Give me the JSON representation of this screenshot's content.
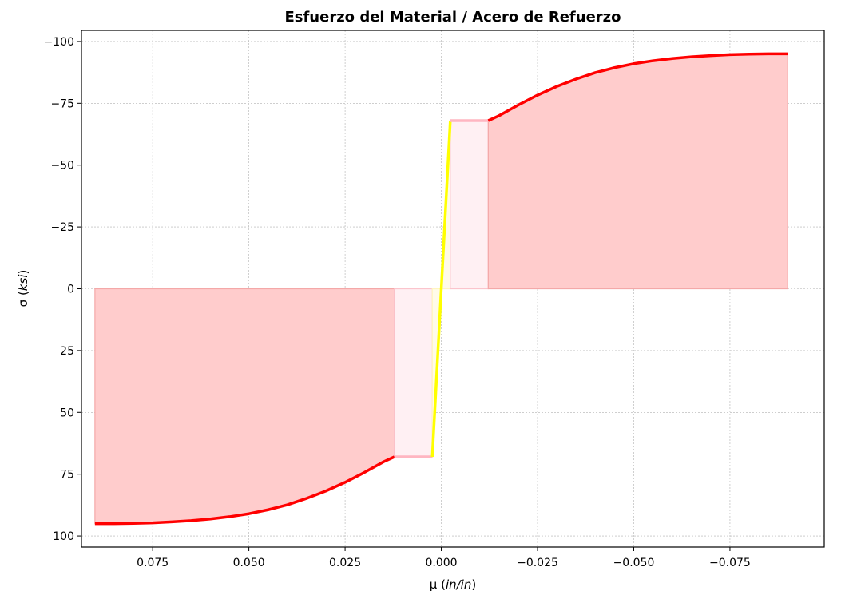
{
  "chart_data": {
    "type": "line",
    "title": "Esfuerzo del Material / Acero de Refuerzo",
    "xlabel": "μ (in/in)",
    "ylabel": "σ (ksi)",
    "x_inverted": true,
    "y_inverted": true,
    "xlim": [
      0.0935,
      -0.0995
    ],
    "ylim": [
      104.5,
      -104.5
    ],
    "grid": true,
    "x_ticks": [
      {
        "value": 0.075,
        "label": "0.075"
      },
      {
        "value": 0.05,
        "label": "0.050"
      },
      {
        "value": 0.025,
        "label": "0.025"
      },
      {
        "value": 0.0,
        "label": "0.000"
      },
      {
        "value": -0.025,
        "label": "−0.025"
      },
      {
        "value": -0.05,
        "label": "−0.050"
      },
      {
        "value": -0.075,
        "label": "−0.075"
      }
    ],
    "y_ticks": [
      {
        "value": -100,
        "label": "−100"
      },
      {
        "value": -75,
        "label": "−75"
      },
      {
        "value": -50,
        "label": "−50"
      },
      {
        "value": -25,
        "label": "−25"
      },
      {
        "value": 0,
        "label": "0"
      },
      {
        "value": 25,
        "label": "25"
      },
      {
        "value": 50,
        "label": "50"
      },
      {
        "value": 75,
        "label": "75"
      },
      {
        "value": 100,
        "label": "100"
      }
    ],
    "fill_regions": [
      {
        "region": "strain-hardening-tension",
        "color": "#ffcccc",
        "edge": "#f4a8a8",
        "x": [
          0.09,
          0.0122
        ]
      },
      {
        "region": "yield-plateau-tension",
        "color": "#fff0f3",
        "edge": "#fbc4cc",
        "x": [
          0.0122,
          0.00234
        ]
      },
      {
        "region": "elastic-tension",
        "color": "#fffbe8",
        "edge": "#fff5c0",
        "x": [
          0.00234,
          0.0
        ]
      },
      {
        "region": "elastic-compression",
        "color": "#fffbe8",
        "edge": "#fff5c0",
        "x": [
          0.0,
          -0.00234
        ]
      },
      {
        "region": "yield-plateau-compression",
        "color": "#fff0f3",
        "edge": "#fbc4cc",
        "x": [
          -0.00234,
          -0.0122
        ]
      },
      {
        "region": "strain-hardening-compression",
        "color": "#ffcccc",
        "edge": "#f4a8a8",
        "x": [
          -0.0122,
          -0.09
        ]
      }
    ],
    "series": [
      {
        "segment": "strain-hardening-tension",
        "color": "#ff0000",
        "width": 3.5,
        "x": [
          0.09,
          0.085,
          0.08,
          0.075,
          0.07,
          0.065,
          0.06,
          0.055,
          0.05,
          0.045,
          0.04,
          0.035,
          0.03,
          0.025,
          0.02,
          0.015,
          0.0122
        ],
        "y": [
          95,
          95,
          94.9,
          94.7,
          94.3,
          93.8,
          93.1,
          92.2,
          91,
          89.4,
          87.4,
          84.8,
          81.8,
          78.3,
          74.3,
          70,
          68
        ]
      },
      {
        "segment": "yield-plateau-tension",
        "color": "#ffb6c1",
        "width": 3.5,
        "x": [
          0.0122,
          0.00234
        ],
        "y": [
          68,
          68
        ]
      },
      {
        "segment": "elastic",
        "color": "#ffff00",
        "width": 3.5,
        "x": [
          0.00234,
          -0.00234
        ],
        "y": [
          68,
          -68
        ]
      },
      {
        "segment": "yield-plateau-compression",
        "color": "#ffb6c1",
        "width": 3.5,
        "x": [
          -0.00234,
          -0.0122
        ],
        "y": [
          -68,
          -68
        ]
      },
      {
        "segment": "strain-hardening-compression",
        "color": "#ff0000",
        "width": 3.5,
        "x": [
          -0.0122,
          -0.015,
          -0.02,
          -0.025,
          -0.03,
          -0.035,
          -0.04,
          -0.045,
          -0.05,
          -0.055,
          -0.06,
          -0.065,
          -0.07,
          -0.075,
          -0.08,
          -0.085,
          -0.09
        ],
        "y": [
          -68,
          -70,
          -74.3,
          -78.3,
          -81.8,
          -84.8,
          -87.4,
          -89.4,
          -91,
          -92.2,
          -93.1,
          -93.8,
          -94.3,
          -94.7,
          -94.9,
          -95,
          -95
        ]
      }
    ]
  }
}
